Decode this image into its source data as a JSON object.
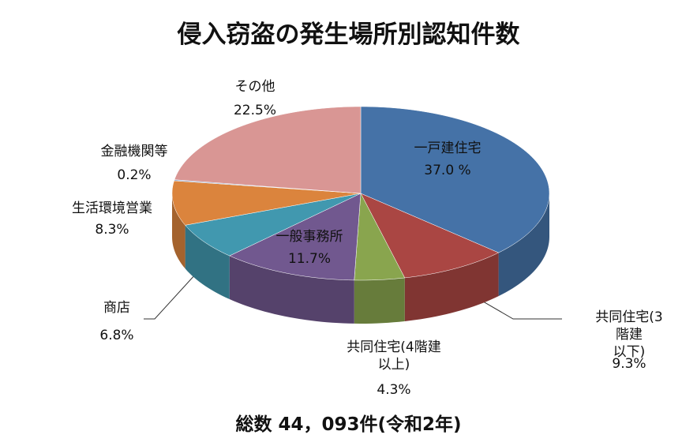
{
  "chart_data": {
    "type": "pie3d",
    "title": "侵入窃盗の発生場所別認知件数",
    "categories": [
      "一戸建住宅",
      "共同住宅(3階建\n以下)",
      "共同住宅(4階建\n以上)",
      "一般事務所",
      "商店",
      "生活環境営業",
      "金融機関等",
      "その他"
    ],
    "values": [
      37.0,
      9.3,
      4.3,
      11.7,
      6.8,
      8.3,
      0.2,
      22.5
    ],
    "value_labels": [
      "37.0 %",
      "9.3%",
      "4.3%",
      "11.7%",
      "6.8%",
      "8.3%",
      "0.2%",
      "22.5%"
    ],
    "colors": [
      "#4572a7",
      "#aa4643",
      "#89a54e",
      "#71588f",
      "#4198af",
      "#db843d",
      "#93a9cf",
      "#d99694"
    ],
    "note": "総数 44，093件(令和2年)"
  }
}
